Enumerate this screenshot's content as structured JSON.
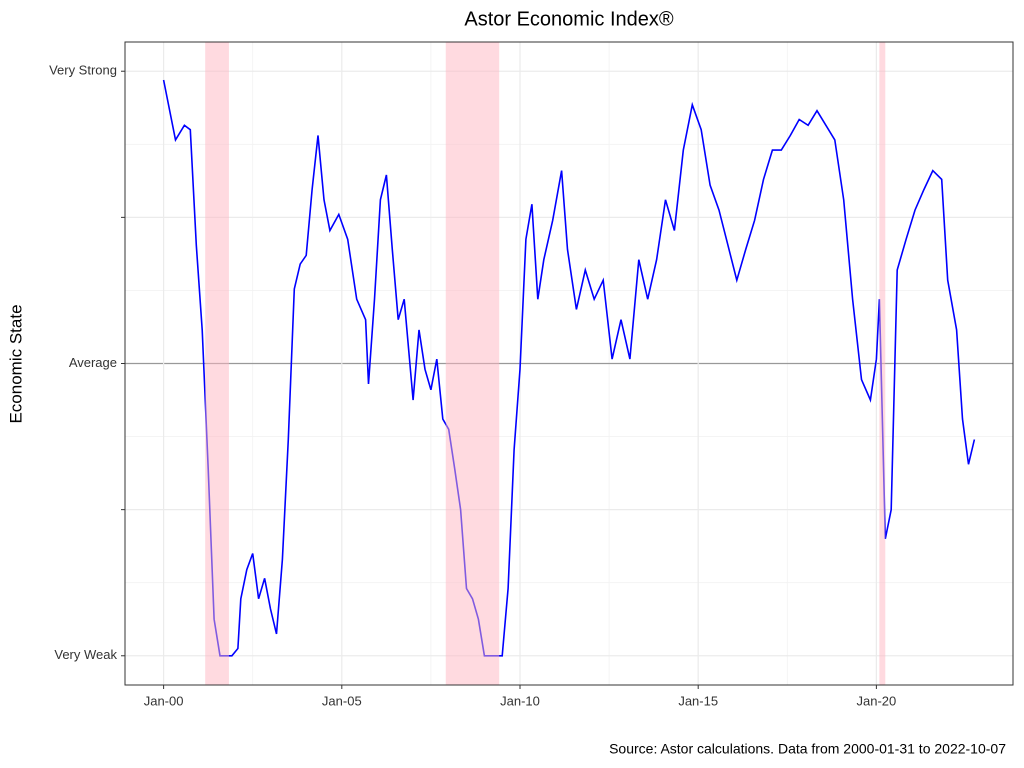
{
  "chart_data": {
    "type": "line",
    "title": "Astor Economic Index®",
    "y_label": "Economic State",
    "source": "Source: Astor calculations. Data from 2000-01-31 to 2022-10-07",
    "xlim": [
      "1998-12",
      "2023-11"
    ],
    "xticks": [
      {
        "value": "2000-01",
        "label": "Jan-00"
      },
      {
        "value": "2005-01",
        "label": "Jan-05"
      },
      {
        "value": "2010-01",
        "label": "Jan-10"
      },
      {
        "value": "2015-01",
        "label": "Jan-15"
      },
      {
        "value": "2020-01",
        "label": "Jan-20"
      }
    ],
    "ylim": [
      -2.2,
      2.2
    ],
    "yticks": [
      {
        "value": -2,
        "label": "Very Weak"
      },
      {
        "value": 0,
        "label": "Average"
      },
      {
        "value": 2,
        "label": "Very Strong"
      }
    ],
    "y_unlabeled_ticks": [
      -1,
      1
    ],
    "grid": true,
    "recession_color": "#ffb6c1",
    "recessions": [
      {
        "start": "2001-03",
        "end": "2001-11"
      },
      {
        "start": "2007-12",
        "end": "2009-06"
      },
      {
        "start": "2020-02",
        "end": "2020-04"
      }
    ],
    "x": [
      "2000-01",
      "2000-05",
      "2000-08",
      "2000-10",
      "2000-12",
      "2001-02",
      "2001-04",
      "2001-06",
      "2001-08",
      "2001-12",
      "2002-02",
      "2002-03",
      "2002-05",
      "2002-07",
      "2002-09",
      "2002-11",
      "2003-01",
      "2003-03",
      "2003-05",
      "2003-07",
      "2003-09",
      "2003-11",
      "2004-01",
      "2004-03",
      "2004-05",
      "2004-07",
      "2004-09",
      "2004-12",
      "2005-03",
      "2005-06",
      "2005-09",
      "2005-10",
      "2005-12",
      "2006-02",
      "2006-04",
      "2006-06",
      "2006-08",
      "2006-10",
      "2007-01",
      "2007-03",
      "2007-05",
      "2007-07",
      "2007-09",
      "2007-11",
      "2008-01",
      "2008-03",
      "2008-05",
      "2008-07",
      "2008-09",
      "2008-11",
      "2009-01",
      "2009-07",
      "2009-09",
      "2009-11",
      "2010-01",
      "2010-03",
      "2010-05",
      "2010-07",
      "2010-09",
      "2010-12",
      "2011-03",
      "2011-05",
      "2011-08",
      "2011-11",
      "2012-02",
      "2012-05",
      "2012-08",
      "2012-11",
      "2013-02",
      "2013-05",
      "2013-08",
      "2013-11",
      "2014-02",
      "2014-05",
      "2014-08",
      "2014-11",
      "2015-02",
      "2015-05",
      "2015-08",
      "2015-11",
      "2016-02",
      "2016-05",
      "2016-08",
      "2016-11",
      "2017-02",
      "2017-05",
      "2017-08",
      "2017-11",
      "2018-02",
      "2018-05",
      "2018-08",
      "2018-11",
      "2019-02",
      "2019-05",
      "2019-08",
      "2019-11",
      "2020-01",
      "2020-02",
      "2020-04",
      "2020-06",
      "2020-08",
      "2020-11",
      "2021-02",
      "2021-05",
      "2021-08",
      "2021-11",
      "2022-01",
      "2022-04",
      "2022-06",
      "2022-08",
      "2022-10"
    ],
    "series": [
      {
        "color": "#0000ff",
        "values": [
          1.94,
          1.53,
          1.63,
          1.6,
          0.81,
          0.23,
          -0.72,
          -1.75,
          -2,
          -2,
          -1.95,
          -1.61,
          -1.41,
          -1.3,
          -1.61,
          -1.47,
          -1.68,
          -1.85,
          -1.34,
          -0.52,
          0.51,
          0.68,
          0.74,
          1.19,
          1.56,
          1.12,
          0.91,
          1.02,
          0.85,
          0.44,
          0.3,
          -0.14,
          0.44,
          1.12,
          1.29,
          0.78,
          0.3,
          0.44,
          -0.25,
          0.23,
          -0.04,
          -0.18,
          0.03,
          -0.38,
          -0.45,
          -0.72,
          -1.0,
          -1.54,
          -1.61,
          -1.75,
          -2,
          -2,
          -1.54,
          -0.59,
          -0.04,
          0.85,
          1.09,
          0.44,
          0.71,
          0.98,
          1.32,
          0.78,
          0.37,
          0.64,
          0.44,
          0.57,
          0.03,
          0.3,
          0.03,
          0.71,
          0.44,
          0.71,
          1.12,
          0.91,
          1.46,
          1.77,
          1.6,
          1.22,
          1.05,
          0.81,
          0.57,
          0.78,
          0.98,
          1.26,
          1.46,
          1.46,
          1.56,
          1.67,
          1.63,
          1.73,
          1.63,
          1.53,
          1.12,
          0.44,
          -0.11,
          -0.25,
          0.03,
          0.44,
          -1.2,
          -1.0,
          0.64,
          0.85,
          1.05,
          1.19,
          1.32,
          1.26,
          0.57,
          0.23,
          -0.38,
          -0.69,
          -0.52
        ]
      }
    ]
  }
}
